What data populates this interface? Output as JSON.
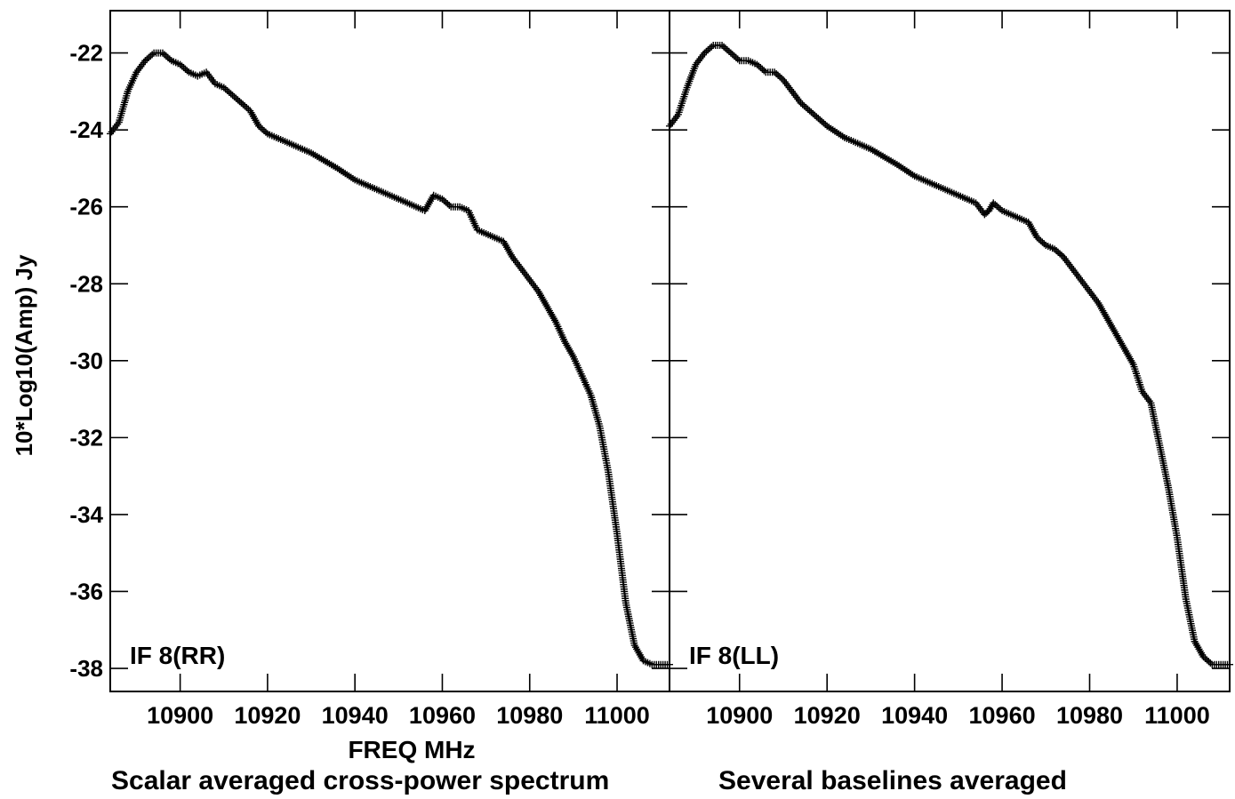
{
  "chart_data": {
    "type": "scatter",
    "marker": "+",
    "color": "#000000",
    "ylabel": "10*Log10(Amp) Jy",
    "xlabel": "FREQ MHz",
    "caption_left": "Scalar averaged cross-power spectrum",
    "caption_right": "Several baselines averaged",
    "ylim": [
      -38.6,
      -20.9
    ],
    "xlim": [
      10884,
      11012
    ],
    "yticks": [
      -22,
      -24,
      -26,
      -28,
      -30,
      -32,
      -34,
      -36,
      -38
    ],
    "ytick_labels": [
      "-22",
      "-24",
      "-26",
      "-28",
      "-30",
      "-32",
      "-34",
      "-36",
      "-38"
    ],
    "xticks": [
      10900,
      10920,
      10940,
      10960,
      10980,
      11000
    ],
    "xtick_labels": [
      "10900",
      "10920",
      "10940",
      "10960",
      "10980",
      "11000"
    ],
    "panels": [
      {
        "label": "IF 8(RR)",
        "series": [
          {
            "x": [
              10884,
              10886,
              10888,
              10890,
              10892,
              10894,
              10896,
              10898,
              10900,
              10902,
              10904,
              10906,
              10908,
              10910,
              10912,
              10914,
              10916,
              10918,
              10920,
              10924,
              10930,
              10936,
              10940,
              10946,
              10950,
              10954,
              10956,
              10957,
              10958,
              10960,
              10962,
              10964,
              10966,
              10968,
              10970,
              10972,
              10974,
              10976,
              10978,
              10980,
              10982,
              10984,
              10986,
              10988,
              10990,
              10992,
              10994,
              10996,
              10998,
              11000,
              11002,
              11004,
              11006,
              11008,
              11010,
              11012
            ],
            "y": [
              -24.1,
              -23.8,
              -23.0,
              -22.5,
              -22.2,
              -22.0,
              -22.0,
              -22.2,
              -22.3,
              -22.5,
              -22.6,
              -22.5,
              -22.8,
              -22.9,
              -23.1,
              -23.3,
              -23.5,
              -23.9,
              -24.1,
              -24.3,
              -24.6,
              -25.0,
              -25.3,
              -25.6,
              -25.8,
              -26.0,
              -26.1,
              -25.9,
              -25.7,
              -25.8,
              -26.0,
              -26.0,
              -26.1,
              -26.6,
              -26.7,
              -26.8,
              -26.9,
              -27.3,
              -27.6,
              -27.9,
              -28.2,
              -28.6,
              -29.0,
              -29.5,
              -29.9,
              -30.4,
              -30.9,
              -31.7,
              -32.9,
              -34.5,
              -36.3,
              -37.4,
              -37.8,
              -37.9,
              -37.9,
              -37.9
            ]
          }
        ]
      },
      {
        "label": "IF 8(LL)",
        "series": [
          {
            "x": [
              10884,
              10886,
              10888,
              10890,
              10892,
              10894,
              10896,
              10898,
              10900,
              10902,
              10904,
              10906,
              10908,
              10910,
              10912,
              10914,
              10916,
              10918,
              10920,
              10924,
              10930,
              10936,
              10940,
              10946,
              10950,
              10954,
              10956,
              10957,
              10958,
              10960,
              10962,
              10964,
              10966,
              10968,
              10970,
              10972,
              10974,
              10976,
              10978,
              10980,
              10982,
              10984,
              10986,
              10988,
              10990,
              10992,
              10994,
              10996,
              10998,
              11000,
              11002,
              11004,
              11006,
              11008,
              11010,
              11012
            ],
            "y": [
              -23.9,
              -23.6,
              -22.9,
              -22.3,
              -22.0,
              -21.8,
              -21.8,
              -22.0,
              -22.2,
              -22.2,
              -22.3,
              -22.5,
              -22.5,
              -22.7,
              -23.0,
              -23.3,
              -23.5,
              -23.7,
              -23.9,
              -24.2,
              -24.5,
              -24.9,
              -25.2,
              -25.5,
              -25.7,
              -25.9,
              -26.2,
              -26.1,
              -25.9,
              -26.1,
              -26.2,
              -26.3,
              -26.4,
              -26.8,
              -27.0,
              -27.1,
              -27.3,
              -27.6,
              -27.9,
              -28.2,
              -28.5,
              -28.9,
              -29.3,
              -29.7,
              -30.1,
              -30.8,
              -31.1,
              -32.2,
              -33.3,
              -34.6,
              -36.2,
              -37.3,
              -37.7,
              -37.9,
              -37.9,
              -37.9
            ]
          }
        ]
      }
    ]
  }
}
